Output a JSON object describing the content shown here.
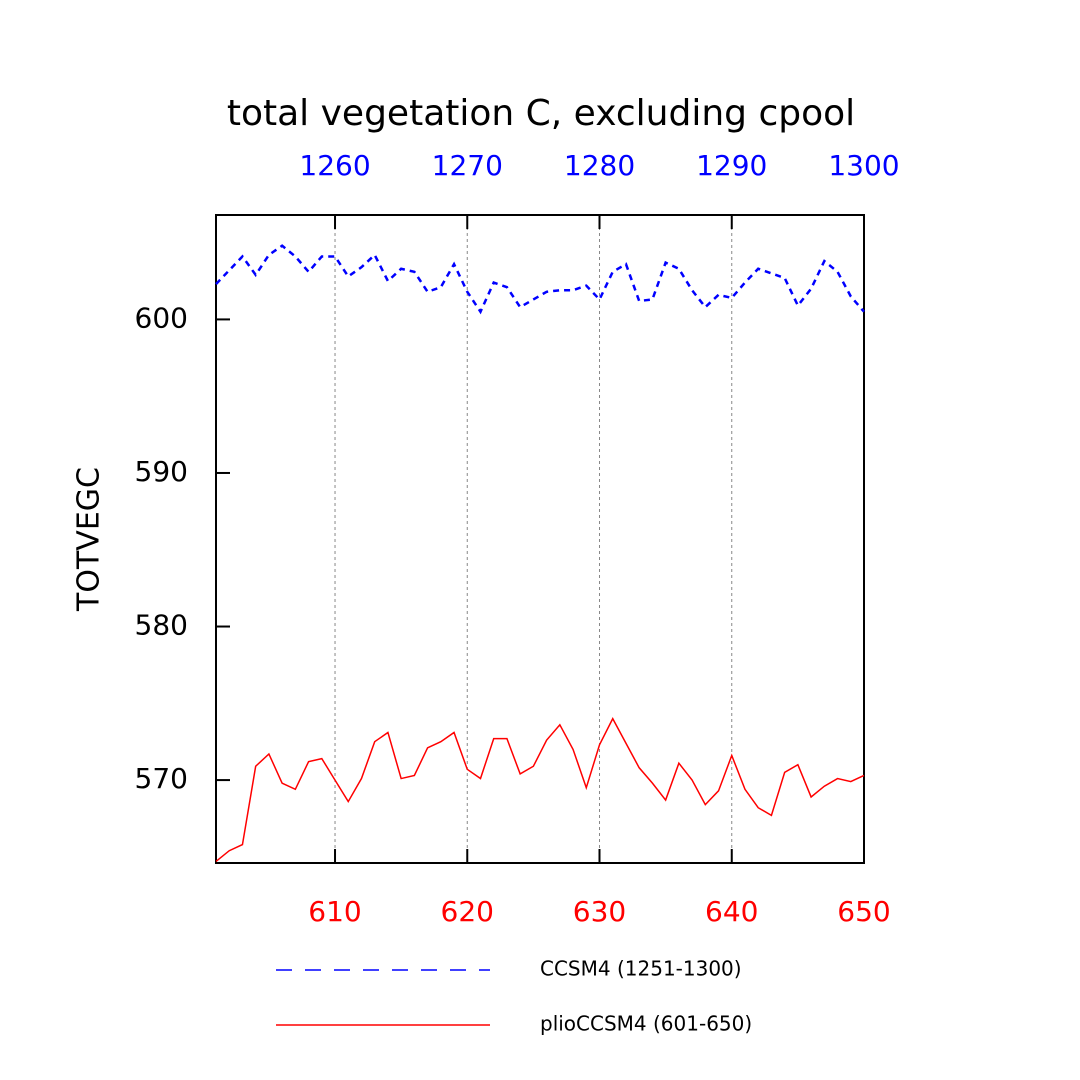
{
  "chart_data": {
    "type": "line",
    "title": "total vegetation C, excluding cpool",
    "ylabel": "TOTVEGC",
    "xlim": [
      601,
      650
    ],
    "xticks": [
      610,
      620,
      630,
      640,
      650
    ],
    "xcolor": "#ff0000",
    "x2lim": [
      1251,
      1300
    ],
    "x2ticks": [
      1260,
      1270,
      1280,
      1290,
      1300
    ],
    "x2color": "#0000ff",
    "ylim": [
      564.6,
      606.8
    ],
    "yticks": [
      570,
      580,
      590,
      600
    ],
    "xgrid": true,
    "series": [
      {
        "name": "CCSM4 (1251-1300)",
        "color": "#0000ff",
        "dash": true,
        "axis": "x2",
        "x": [
          1251,
          1252,
          1253,
          1254,
          1255,
          1256,
          1257,
          1258,
          1259,
          1260,
          1261,
          1262,
          1263,
          1264,
          1265,
          1266,
          1267,
          1268,
          1269,
          1270,
          1271,
          1272,
          1273,
          1274,
          1275,
          1276,
          1277,
          1278,
          1279,
          1280,
          1281,
          1282,
          1283,
          1284,
          1285,
          1286,
          1287,
          1288,
          1289,
          1290,
          1291,
          1292,
          1293,
          1294,
          1295,
          1296,
          1297,
          1298,
          1299,
          1300
        ],
        "values": [
          602.3,
          603.2,
          604.1,
          602.9,
          604.2,
          604.8,
          604.1,
          603.1,
          604.1,
          604.1,
          602.8,
          603.4,
          604.2,
          602.5,
          603.3,
          603.1,
          601.8,
          602.1,
          603.6,
          601.8,
          600.5,
          602.4,
          602.1,
          600.8,
          601.3,
          601.8,
          601.9,
          601.9,
          602.2,
          601.3,
          603.1,
          603.6,
          601.2,
          601.3,
          603.7,
          603.3,
          601.9,
          600.8,
          601.6,
          601.4,
          602.4,
          603.3,
          603.0,
          602.7,
          600.9,
          602.0,
          603.8,
          603.1,
          601.5,
          600.5
        ]
      },
      {
        "name": "plioCCSM4 (601-650)",
        "color": "#ff0000",
        "dash": false,
        "x": [
          601,
          602,
          603,
          604,
          605,
          606,
          607,
          608,
          609,
          610,
          611,
          612,
          613,
          614,
          615,
          616,
          617,
          618,
          619,
          620,
          621,
          622,
          623,
          624,
          625,
          626,
          627,
          628,
          629,
          630,
          631,
          632,
          633,
          634,
          635,
          636,
          637,
          638,
          639,
          640,
          641,
          642,
          643,
          644,
          645,
          646,
          647,
          648,
          649,
          650
        ],
        "values": [
          564.7,
          565.4,
          565.8,
          570.9,
          571.7,
          569.8,
          569.4,
          571.2,
          571.4,
          570.0,
          568.6,
          570.1,
          572.5,
          573.1,
          570.1,
          570.3,
          572.1,
          572.5,
          573.1,
          570.7,
          570.1,
          572.7,
          572.7,
          570.4,
          570.9,
          572.6,
          573.6,
          572.0,
          569.5,
          572.3,
          574.0,
          572.4,
          570.8,
          569.8,
          568.7,
          571.1,
          570.0,
          568.4,
          569.3,
          571.6,
          569.4,
          568.2,
          567.7,
          570.5,
          571.0,
          568.9,
          569.6,
          570.1,
          569.9,
          570.3
        ]
      }
    ]
  }
}
